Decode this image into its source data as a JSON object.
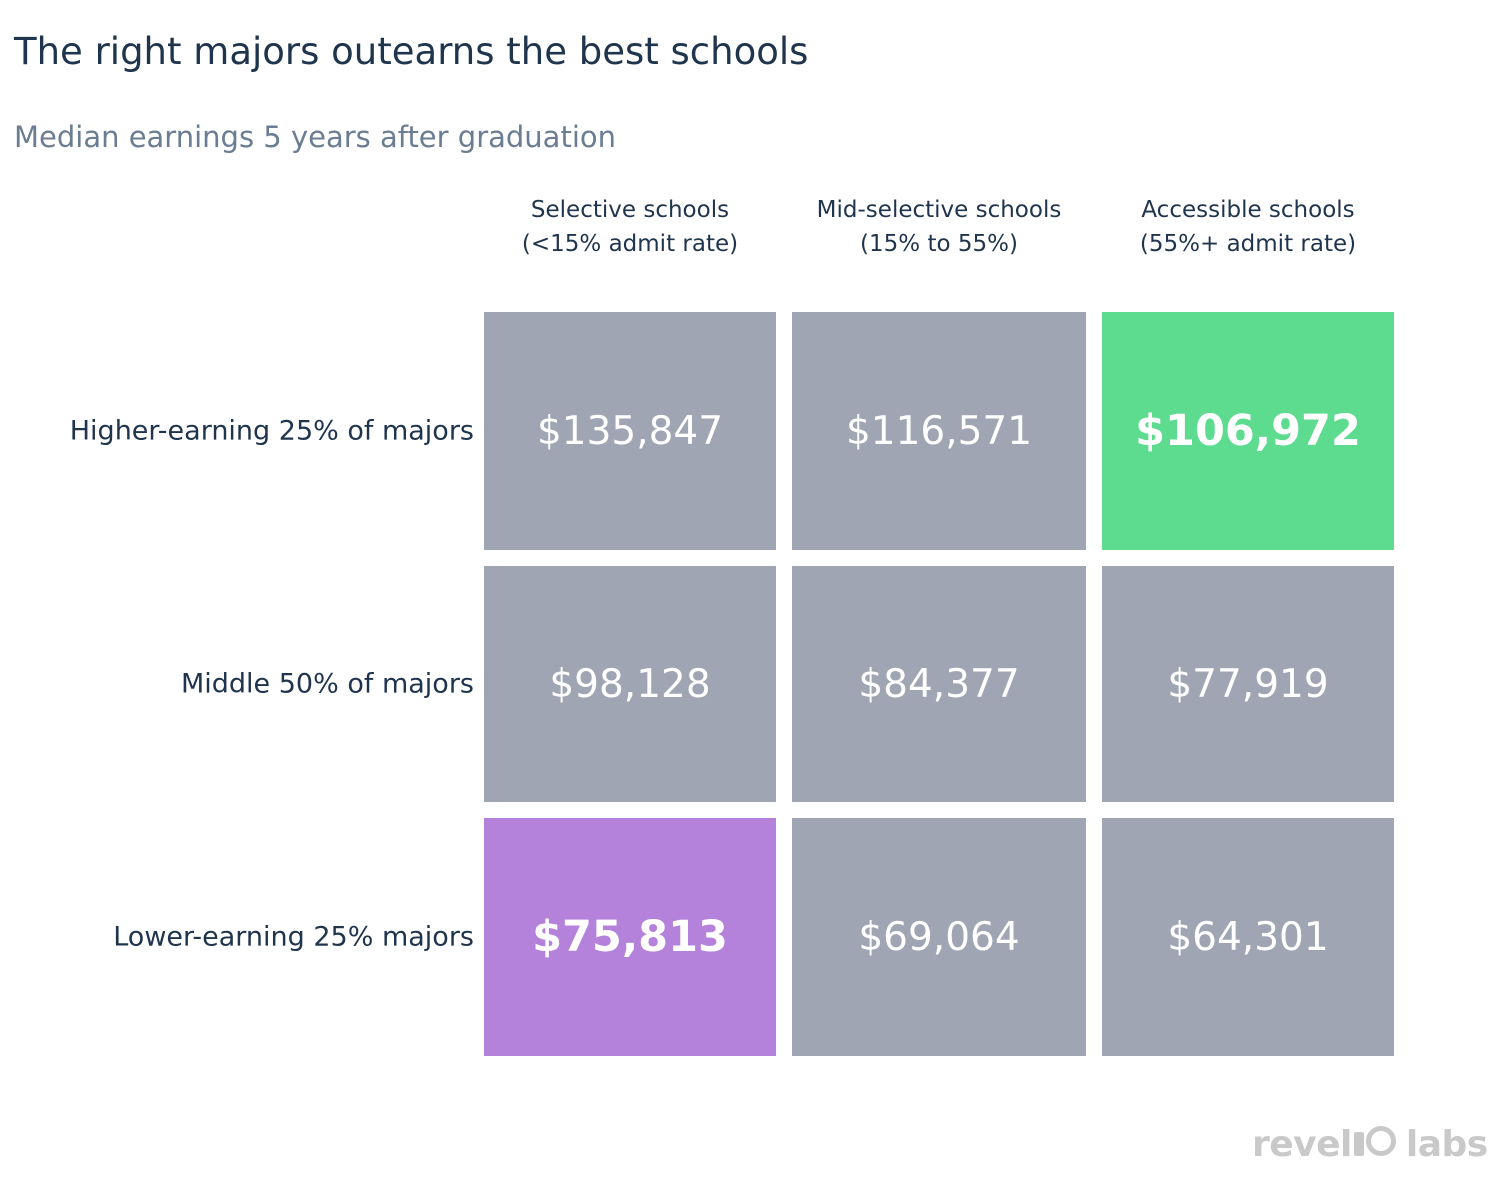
{
  "chart_data": {
    "type": "heatmap",
    "title": "The right majors outearns the best schools",
    "subtitle": "Median earnings 5 years after graduation",
    "columns": [
      {
        "line1": "Selective schools",
        "line2": "(<15% admit rate)"
      },
      {
        "line1": "Mid-selective schools",
        "line2": "(15% to 55%)"
      },
      {
        "line1": "Accessible schools",
        "line2": "(55%+ admit rate)"
      }
    ],
    "rows": [
      "Higher-earning 25% of majors",
      "Middle 50% of majors",
      "Lower-earning 25% majors"
    ],
    "values": [
      [
        135847,
        116571,
        106972
      ],
      [
        98128,
        84377,
        77919
      ],
      [
        75813,
        69064,
        64301
      ]
    ],
    "cell_labels": [
      [
        "$135,847",
        "$116,571",
        "$106,972"
      ],
      [
        "$98,128",
        "$84,377",
        "$77,919"
      ],
      [
        "$75,813",
        "$69,064",
        "$64,301"
      ]
    ],
    "highlights": [
      {
        "row": 0,
        "col": 2,
        "color": "#5ddb8f"
      },
      {
        "row": 2,
        "col": 0,
        "color": "#b482da"
      }
    ],
    "colors": {
      "default_cell": "#9fa5b3",
      "title": "#1f344d",
      "subtitle": "#6b7d92"
    }
  },
  "logo": {
    "text_left": "revel",
    "text_right": "labs"
  }
}
